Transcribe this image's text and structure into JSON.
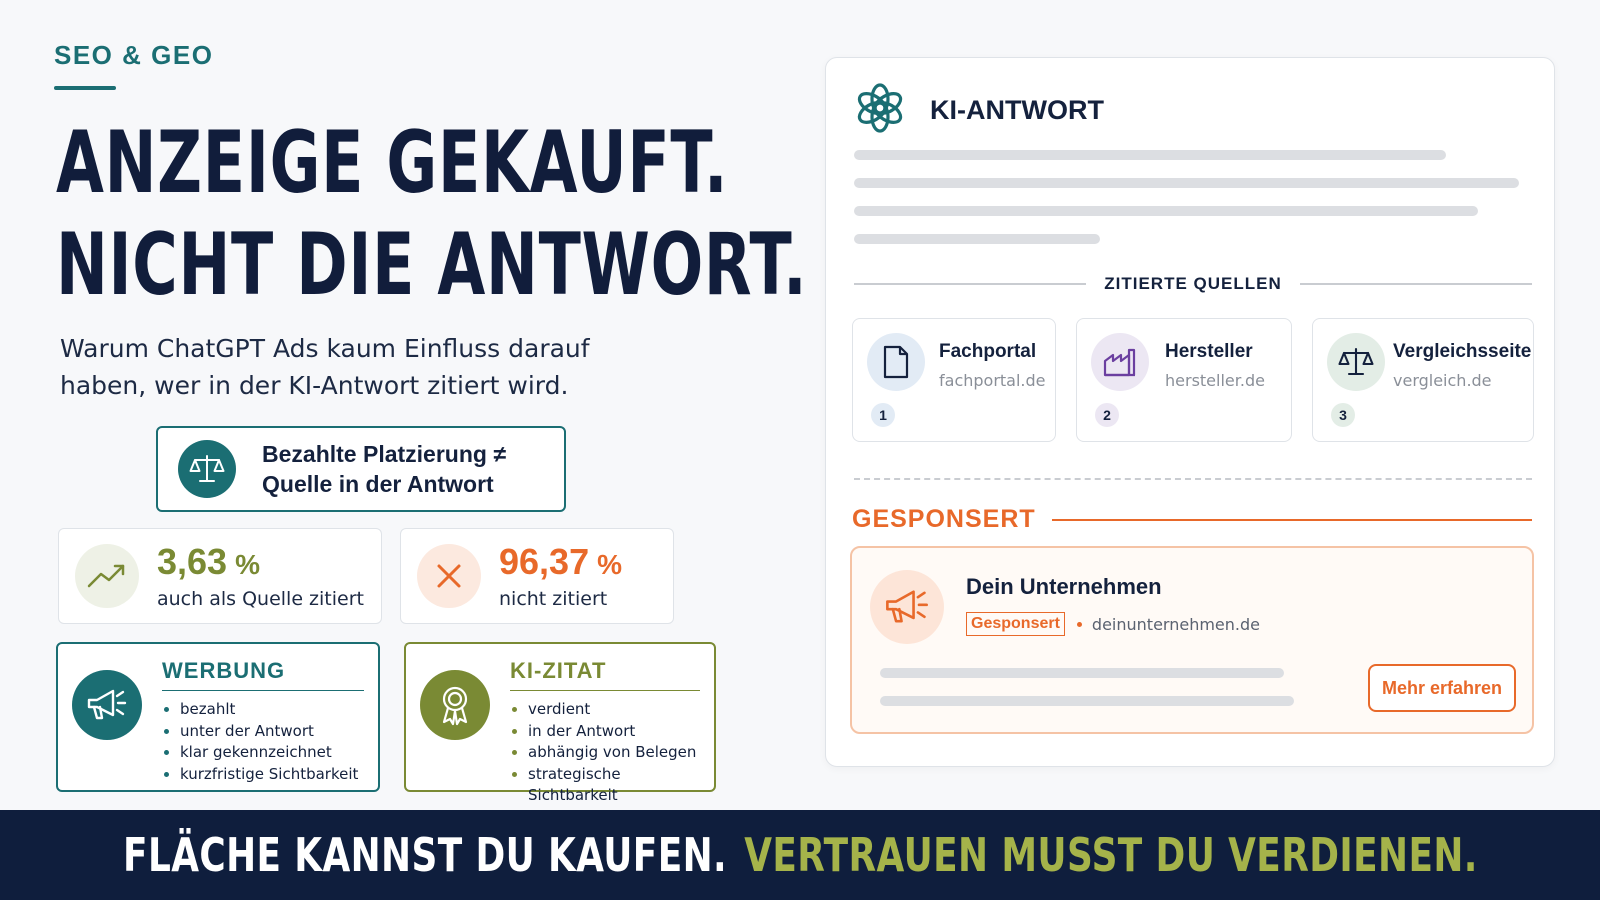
{
  "eyebrow": "SEO & GEO",
  "headline": {
    "line1": "ANZEIGE GEKAUFT.",
    "line2": "NICHT DIE ANTWORT."
  },
  "subheadline": {
    "line1": "Warum ChatGPT Ads kaum Einfluss darauf",
    "line2": "haben, wer in der KI-Antwort zitiert wird."
  },
  "key_message": {
    "line1": "Bezahlte Platzierung ≠",
    "line2": "Quelle in der Antwort",
    "icon": "scale-icon"
  },
  "stats": [
    {
      "value": "3,63",
      "unit": "%",
      "label": "auch als Quelle zitiert",
      "color": "#7a8a34",
      "icon": "trend-up-icon"
    },
    {
      "value": "96,37",
      "unit": "%",
      "label": "nicht zitiert",
      "color": "#e8692a",
      "icon": "x-icon"
    }
  ],
  "comparison": {
    "ads": {
      "title": "WERBUNG",
      "color": "#1b6e73",
      "icon": "megaphone-icon",
      "items": [
        "bezahlt",
        "unter der Antwort",
        "klar gekennzeichnet",
        "kurzfristige Sichtbarkeit"
      ]
    },
    "citation": {
      "title": "KI-ZITAT",
      "color": "#7a8a34",
      "icon": "award-icon",
      "items": [
        "verdient",
        "in der Antwort",
        "abhängig von Belegen",
        "strategische Sichtbarkeit"
      ]
    }
  },
  "ai_panel": {
    "title": "KI-ANTWORT",
    "logo_icon": "openai-logo-icon",
    "sources_label": "ZITIERTE QUELLEN",
    "sources": [
      {
        "name": "Fachportal",
        "domain": "fachportal.de",
        "number": "1",
        "icon": "document-icon"
      },
      {
        "name": "Hersteller",
        "domain": "hersteller.de",
        "number": "2",
        "icon": "factory-icon"
      },
      {
        "name": "Vergleichsseite",
        "domain": "vergleich.de",
        "number": "3",
        "icon": "scale-icon"
      }
    ],
    "sponsored_label": "GESPONSERT",
    "ad": {
      "name": "Dein Unternehmen",
      "badge": "Gesponsert",
      "domain": "deinunternehmen.de",
      "button": "Mehr erfahren",
      "icon": "megaphone-icon"
    }
  },
  "footer": {
    "part1": "FLÄCHE KANNST DU KAUFEN.",
    "part2": "VERTRAUEN MUSST DU VERDIENEN."
  },
  "colors": {
    "navy": "#111d3b",
    "teal": "#1b6e73",
    "olive": "#7a8a34",
    "orange": "#e8692a",
    "footer_bg": "#0f1e3d"
  }
}
